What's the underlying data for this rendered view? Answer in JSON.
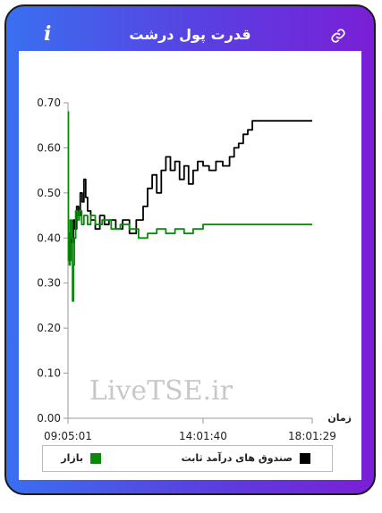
{
  "header": {
    "title": "قدرت پول درشت",
    "info_icon": "info-icon",
    "link_icon": "link-icon"
  },
  "colors": {
    "frame_gradient_start": "#3a6ff0",
    "frame_gradient_end": "#7a1fd6",
    "series_fixed_income": "#000000",
    "series_market": "#0a8a0a"
  },
  "watermark": "LiveTSE.ir",
  "chart_data": {
    "type": "line",
    "xlabel": "زمان",
    "ylabel": "",
    "ylim": [
      0,
      0.7
    ],
    "yticks": [
      "0.00",
      "0.10",
      "0.20",
      "0.30",
      "0.40",
      "0.50",
      "0.60",
      "0.70"
    ],
    "xticks": [
      "09:05:01",
      "14:01:40",
      "18:01:29"
    ],
    "grid": false,
    "legend_position": "bottom",
    "series": [
      {
        "name": "صندوق های درآمد ثابت",
        "color": "#000000",
        "points": [
          [
            "09:05:01",
            0.41
          ],
          [
            "09:08:00",
            0.35
          ],
          [
            "09:11:00",
            0.4
          ],
          [
            "09:14:00",
            0.39
          ],
          [
            "09:17:00",
            0.44
          ],
          [
            "09:20:00",
            0.42
          ],
          [
            "09:24:00",
            0.47
          ],
          [
            "09:28:00",
            0.45
          ],
          [
            "09:32:00",
            0.5
          ],
          [
            "09:36:00",
            0.48
          ],
          [
            "09:40:00",
            0.53
          ],
          [
            "09:44:00",
            0.49
          ],
          [
            "09:48:00",
            0.46
          ],
          [
            "09:55:00",
            0.44
          ],
          [
            "10:05:00",
            0.42
          ],
          [
            "10:15:00",
            0.45
          ],
          [
            "10:25:00",
            0.43
          ],
          [
            "10:35:00",
            0.44
          ],
          [
            "10:50:00",
            0.42
          ],
          [
            "11:05:00",
            0.44
          ],
          [
            "11:20:00",
            0.41
          ],
          [
            "11:35:00",
            0.44
          ],
          [
            "11:50:00",
            0.47
          ],
          [
            "12:00:00",
            0.51
          ],
          [
            "12:10:00",
            0.54
          ],
          [
            "12:20:00",
            0.5
          ],
          [
            "12:30:00",
            0.55
          ],
          [
            "12:40:00",
            0.58
          ],
          [
            "12:50:00",
            0.55
          ],
          [
            "13:00:00",
            0.57
          ],
          [
            "13:10:00",
            0.53
          ],
          [
            "13:20:00",
            0.56
          ],
          [
            "13:30:00",
            0.52
          ],
          [
            "13:40:00",
            0.55
          ],
          [
            "13:50:00",
            0.57
          ],
          [
            "14:01:40",
            0.56
          ],
          [
            "14:15:00",
            0.55
          ],
          [
            "14:30:00",
            0.57
          ],
          [
            "14:45:00",
            0.56
          ],
          [
            "15:00:00",
            0.58
          ],
          [
            "15:10:00",
            0.6
          ],
          [
            "15:20:00",
            0.61
          ],
          [
            "15:30:00",
            0.63
          ],
          [
            "15:40:00",
            0.64
          ],
          [
            "15:50:00",
            0.66
          ],
          [
            "16:30:00",
            0.66
          ],
          [
            "17:30:00",
            0.66
          ],
          [
            "18:01:29",
            0.66
          ]
        ]
      },
      {
        "name": "بازار",
        "color": "#0a8a0a",
        "points": [
          [
            "09:05:01",
            0.68
          ],
          [
            "09:06:00",
            0.35
          ],
          [
            "09:08:00",
            0.34
          ],
          [
            "09:10:00",
            0.44
          ],
          [
            "09:13:00",
            0.4
          ],
          [
            "09:15:00",
            0.26
          ],
          [
            "09:17:00",
            0.34
          ],
          [
            "09:19:00",
            0.4
          ],
          [
            "09:22:00",
            0.46
          ],
          [
            "09:26:00",
            0.44
          ],
          [
            "09:30:00",
            0.46
          ],
          [
            "09:35:00",
            0.43
          ],
          [
            "09:40:00",
            0.45
          ],
          [
            "09:48:00",
            0.43
          ],
          [
            "09:55:00",
            0.45
          ],
          [
            "10:05:00",
            0.43
          ],
          [
            "10:20:00",
            0.44
          ],
          [
            "10:40:00",
            0.42
          ],
          [
            "11:00:00",
            0.43
          ],
          [
            "11:20:00",
            0.42
          ],
          [
            "11:40:00",
            0.4
          ],
          [
            "12:00:00",
            0.41
          ],
          [
            "12:20:00",
            0.42
          ],
          [
            "12:40:00",
            0.41
          ],
          [
            "13:00:00",
            0.42
          ],
          [
            "13:20:00",
            0.41
          ],
          [
            "13:40:00",
            0.42
          ],
          [
            "14:01:40",
            0.43
          ],
          [
            "15:00:00",
            0.43
          ],
          [
            "16:00:00",
            0.43
          ],
          [
            "17:00:00",
            0.43
          ],
          [
            "18:01:29",
            0.43
          ]
        ]
      }
    ]
  }
}
